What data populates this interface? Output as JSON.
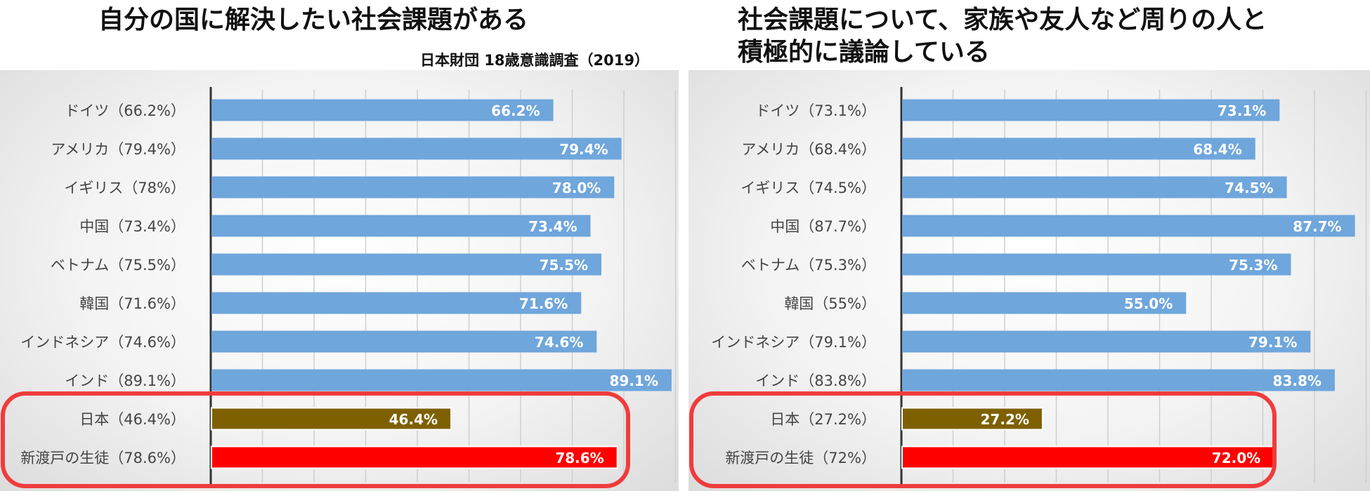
{
  "titles": {
    "left": "自分の国に解決したい社会課題がある",
    "right_line1": "社会課題について、家族や友人など周りの人と",
    "right_line2": "積極的に議論している",
    "source": "日本財団 18歳意識調査（2019）"
  },
  "colors": {
    "default_bar": "#6fa6dc",
    "japan_bar": "#7f6000",
    "shinto_bar": "#ff0000",
    "highlight_outline": "#f03c3c"
  },
  "chart_data": [
    {
      "type": "bar",
      "orientation": "horizontal",
      "title": "自分の国に解決したい社会課題がある",
      "xlim": [
        0,
        90
      ],
      "gridlines": true,
      "categories": [
        "ドイツ（66.2%）",
        "アメリカ（79.4%）",
        "イギリス（78%）",
        "中国（73.4%）",
        "ベトナム（75.5%）",
        "韓国（71.6%）",
        "インドネシア（74.6%）",
        "インド（89.1%）",
        "日本（46.4%）",
        "新渡戸の生徒（78.6%）"
      ],
      "values": [
        66.2,
        79.4,
        78.0,
        73.4,
        75.5,
        71.6,
        74.6,
        89.1,
        46.4,
        78.6
      ],
      "data_labels": [
        "66.2%",
        "79.4%",
        "78.0%",
        "73.4%",
        "75.5%",
        "71.6%",
        "74.6%",
        "89.1%",
        "46.4%",
        "78.6%"
      ],
      "highlighted": [
        "日本（46.4%）",
        "新渡戸の生徒（78.6%）"
      ]
    },
    {
      "type": "bar",
      "orientation": "horizontal",
      "title": "社会課題について、家族や友人など周りの人と積極的に議論している",
      "xlim": [
        0,
        90
      ],
      "gridlines": true,
      "categories": [
        "ドイツ（73.1%）",
        "アメリカ（68.4%）",
        "イギリス（74.5%）",
        "中国（87.7%）",
        "ベトナム（75.3%）",
        "韓国（55%）",
        "インドネシア（79.1%）",
        "インド（83.8%）",
        "日本（27.2%）",
        "新渡戸の生徒（72%）"
      ],
      "values": [
        73.1,
        68.4,
        74.5,
        87.7,
        75.3,
        55.0,
        79.1,
        83.8,
        27.2,
        72.0
      ],
      "data_labels": [
        "73.1%",
        "68.4%",
        "74.5%",
        "87.7%",
        "75.3%",
        "55.0%",
        "79.1%",
        "83.8%",
        "27.2%",
        "72.0%"
      ],
      "highlighted": [
        "日本（27.2%）",
        "新渡戸の生徒（72%）"
      ]
    }
  ]
}
